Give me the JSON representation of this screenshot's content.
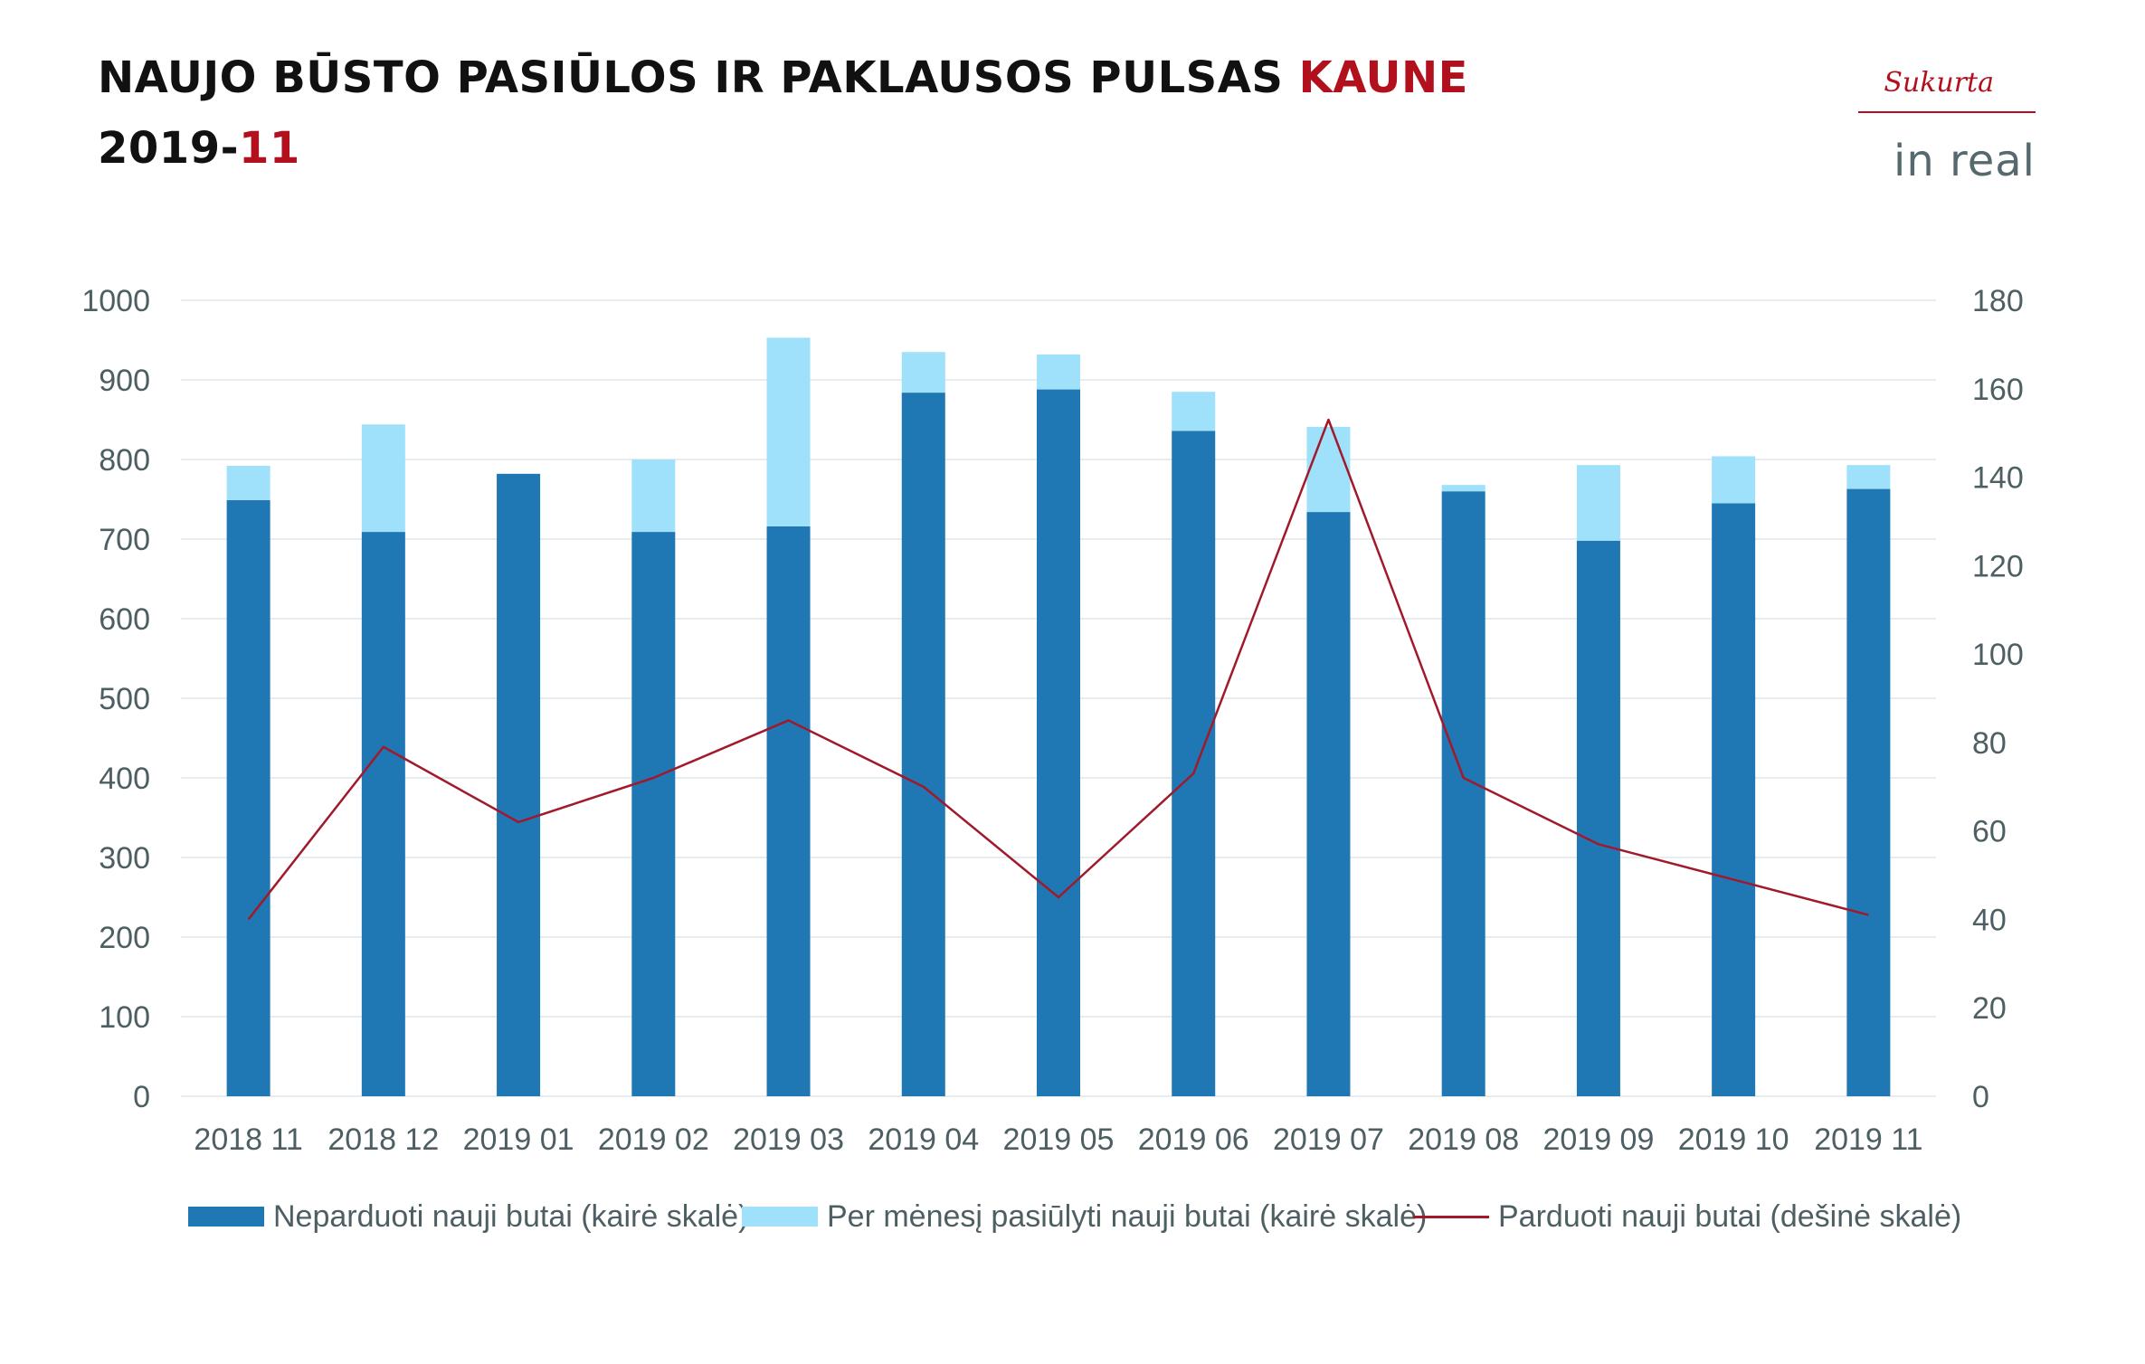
{
  "header": {
    "title_main": "NAUJO BŪSTO PASIŪLOS IR PAKLAUSOS PULSAS ",
    "title_accent": "KAUNE",
    "subtitle_main": "2019-",
    "subtitle_accent": "11"
  },
  "logo": {
    "made_text": "Sukurta",
    "brand_text": "in real"
  },
  "colors": {
    "unsold": "#1f77b4",
    "offered": "#9fe0fb",
    "sold": "#a01a2c",
    "grid": "#dfe6e9",
    "accent": "#b3101e"
  },
  "chart_data": {
    "type": "bar",
    "stacked": true,
    "categories": [
      "2018 11",
      "2018 12",
      "2019 01",
      "2019 02",
      "2019 03",
      "2019 04",
      "2019 05",
      "2019 06",
      "2019 07",
      "2019 08",
      "2019 09",
      "2019 10",
      "2019 11"
    ],
    "series": [
      {
        "name": "Neparduoti nauji butai (kairė skalė)",
        "type": "bar",
        "axis": "left",
        "color": "#1f77b4",
        "values": [
          749,
          709,
          782,
          709,
          716,
          884,
          888,
          836,
          734,
          760,
          698,
          745,
          763
        ]
      },
      {
        "name": "Per mėnesį pasiūlyti nauji butai (kairė skalė)",
        "type": "bar",
        "axis": "left",
        "color": "#9fe0fb",
        "values": [
          43,
          135,
          0,
          91,
          237,
          51,
          44,
          49,
          107,
          8,
          95,
          59,
          30
        ]
      },
      {
        "name": "Parduoti nauji butai (dešinė skalė)",
        "type": "line",
        "axis": "right",
        "color": "#a01a2c",
        "values": [
          40,
          79,
          62,
          72,
          85,
          70,
          45,
          73,
          153,
          72,
          57,
          49,
          41
        ]
      }
    ],
    "y_left": {
      "min": 0,
      "max": 1000,
      "ticks": [
        0,
        100,
        200,
        300,
        400,
        500,
        600,
        700,
        800,
        900,
        1000
      ]
    },
    "y_right": {
      "min": 0,
      "max": 180,
      "ticks": [
        0,
        20,
        40,
        60,
        80,
        100,
        120,
        140,
        160,
        180
      ]
    },
    "grid": true,
    "legend_position": "bottom"
  }
}
